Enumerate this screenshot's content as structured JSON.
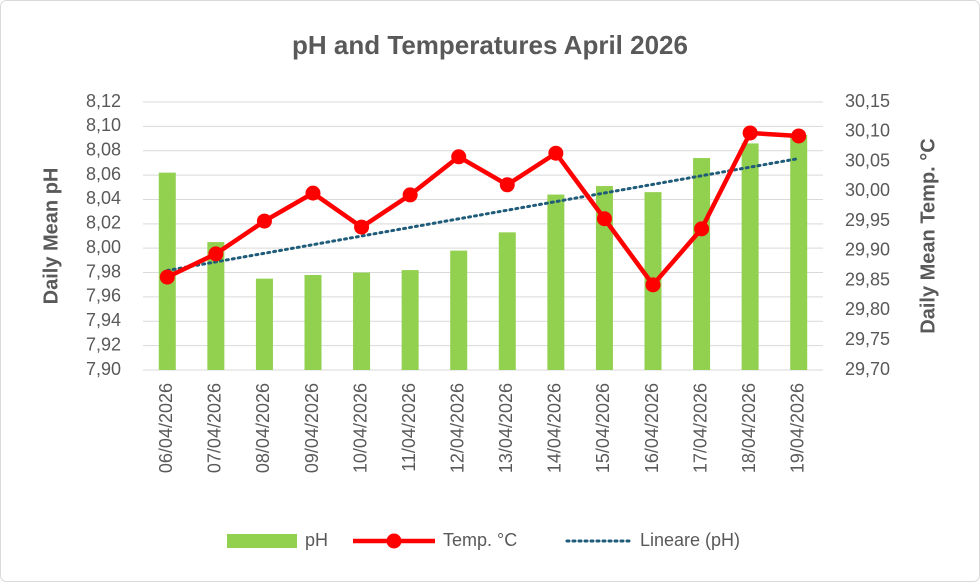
{
  "chart_data": {
    "type": "bar",
    "title": "pH and Temperatures April 2026",
    "y_label": "Daily Mean pH",
    "y2_label": "Daily Mean Temp. °C",
    "categories": [
      "06/04/2026",
      "07/04/2026",
      "08/04/2026",
      "09/04/2026",
      "10/04/2026",
      "11/04/2026",
      "12/04/2026",
      "13/04/2026",
      "14/04/2026",
      "15/04/2026",
      "16/04/2026",
      "17/04/2026",
      "18/04/2026",
      "19/04/2026"
    ],
    "series": [
      {
        "name": "pH",
        "type": "bar",
        "color": "#92d050",
        "values": [
          8.062,
          8.005,
          7.975,
          7.978,
          7.98,
          7.982,
          7.998,
          8.013,
          8.044,
          8.051,
          8.046,
          8.074,
          8.086,
          8.093
        ]
      },
      {
        "name": "Temp. °C",
        "type": "line",
        "axis": "y2",
        "color": "#ff0000",
        "values": [
          29.856,
          29.895,
          29.95,
          29.997,
          29.94,
          29.994,
          30.058,
          30.011,
          30.064,
          29.954,
          29.843,
          29.937,
          30.098,
          30.093
        ]
      }
    ],
    "trendline": {
      "name": "Lineare (pH)",
      "color": "#1f5c7a",
      "style": "dotted"
    },
    "ylim": [
      7.9,
      8.12
    ],
    "yticks": [
      {
        "value": 7.9,
        "label": "7,90"
      },
      {
        "value": 7.92,
        "label": "7,92"
      },
      {
        "value": 7.94,
        "label": "7,94"
      },
      {
        "value": 7.96,
        "label": "7,96"
      },
      {
        "value": 7.98,
        "label": "7,98"
      },
      {
        "value": 8.0,
        "label": "8,00"
      },
      {
        "value": 8.02,
        "label": "8,02"
      },
      {
        "value": 8.04,
        "label": "8,04"
      },
      {
        "value": 8.06,
        "label": "8,06"
      },
      {
        "value": 8.08,
        "label": "8,08"
      },
      {
        "value": 8.1,
        "label": "8,10"
      },
      {
        "value": 8.12,
        "label": "8,12"
      }
    ],
    "y2lim": [
      29.7,
      30.15
    ],
    "y2ticks": [
      {
        "value": 29.7,
        "label": "29,70"
      },
      {
        "value": 29.75,
        "label": "29,75"
      },
      {
        "value": 29.8,
        "label": "29,80"
      },
      {
        "value": 29.85,
        "label": "29,85"
      },
      {
        "value": 29.9,
        "label": "29,90"
      },
      {
        "value": 29.95,
        "label": "29,95"
      },
      {
        "value": 30.0,
        "label": "30,00"
      },
      {
        "value": 30.05,
        "label": "30,05"
      },
      {
        "value": 30.1,
        "label": "30,10"
      },
      {
        "value": 30.15,
        "label": "30,15"
      }
    ],
    "grid": true,
    "legend": "bottom"
  }
}
